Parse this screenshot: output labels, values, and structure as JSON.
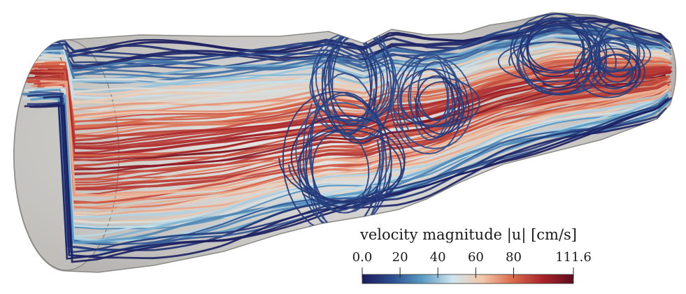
{
  "colorbar": {
    "title": "velocity magnitude |u| [cm/s]",
    "ticks": [
      {
        "value": 0.0,
        "label": "0.0"
      },
      {
        "value": 20,
        "label": "20"
      },
      {
        "value": 40,
        "label": "40"
      },
      {
        "value": 60,
        "label": "60"
      },
      {
        "value": 80,
        "label": "80"
      },
      {
        "value": 111.6,
        "label": "111.6"
      }
    ],
    "min": 0.0,
    "max": 111.6,
    "colormap": [
      "#1b1d5e",
      "#2c4f8f",
      "#5c9cc4",
      "#cfe6ee",
      "#f2c6a8",
      "#d9694c",
      "#a8242a",
      "#5e0c1e"
    ]
  },
  "vessel": {
    "fill": "#b8b8b2",
    "edge": "#8a8a86"
  }
}
